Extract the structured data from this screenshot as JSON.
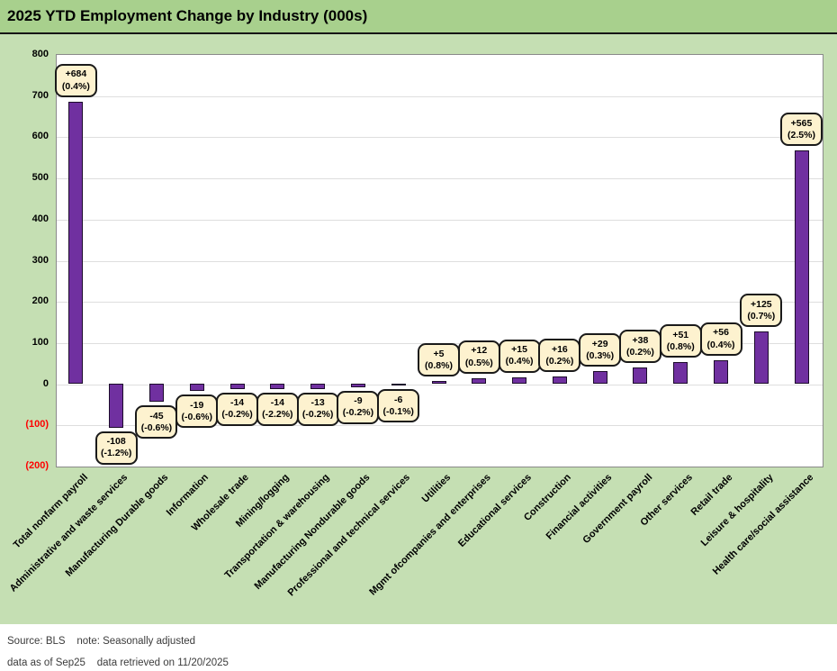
{
  "title": "2025 YTD Employment Change by Industry (000s)",
  "footer": {
    "line1": "Source: BLS    note: Seasonally adjusted",
    "line2": "data as of Sep25    data retrieved on 11/20/2025"
  },
  "colors": {
    "title_band_bg": "#a8d08d",
    "chart_area_bg": "#c5dfb3",
    "plot_bg": "#ffffff",
    "bar_fill": "#7030a0",
    "bar_border": "#1c0b2b",
    "callout_bg": "#fdf2cf",
    "callout_border": "#1a1a1a",
    "gridline": "#dedede",
    "negative_axis_label": "#fe0000",
    "footer_text": "#3b3b3b"
  },
  "chart_data": {
    "type": "bar",
    "title": "2025 YTD Employment Change by Industry (000s)",
    "xlabel": "",
    "ylabel": "",
    "ylim": [
      -200,
      800
    ],
    "ytick_step": 100,
    "grid": true,
    "legend": "none",
    "yticks_display": [
      "800",
      "700",
      "600",
      "500",
      "400",
      "300",
      "200",
      "100",
      "0",
      "(100)",
      "(200)"
    ],
    "categories": [
      "Total nonfarm payroll",
      "Administrative and waste services",
      "Manufacturing Durable goods",
      "Information",
      "Wholesale trade",
      "Mining/logging",
      "Transportation & warehousing",
      "Manufacturing Nondurable goods",
      "Professional and technical services",
      "Utilities",
      "Mgmt ofcompanies and enterprises",
      "Educational services",
      "Construction",
      "Financial activities",
      "Government payroll",
      "Other services",
      "Retail trade",
      "Leisure & hospitality",
      "Health care/social assistance"
    ],
    "values": [
      684,
      -108,
      -45,
      -19,
      -14,
      -14,
      -13,
      -9,
      -6,
      5,
      12,
      15,
      16,
      29,
      38,
      51,
      56,
      125,
      565
    ],
    "value_labels": [
      "+684",
      "-108",
      "-45",
      "-19",
      "-14",
      "-14",
      "-13",
      "-9",
      "-6",
      "+5",
      "+12",
      "+15",
      "+16",
      "+29",
      "+38",
      "+51",
      "+56",
      "+125",
      "+565"
    ],
    "pct_labels": [
      "(0.4%)",
      "(-1.2%)",
      "(-0.6%)",
      "(-0.6%)",
      "(-0.2%)",
      "(-2.2%)",
      "(-0.2%)",
      "(-0.2%)",
      "(-0.1%)",
      "(0.8%)",
      "(0.5%)",
      "(0.4%)",
      "(0.2%)",
      "(0.3%)",
      "(0.2%)",
      "(0.8%)",
      "(0.4%)",
      "(0.7%)",
      "(2.5%)"
    ]
  }
}
